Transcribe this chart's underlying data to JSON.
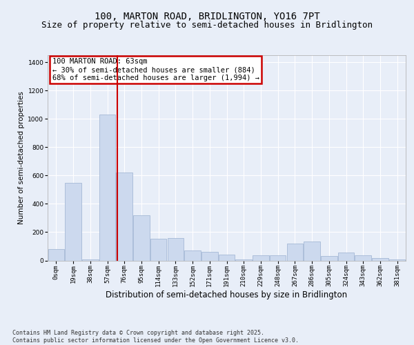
{
  "title": "100, MARTON ROAD, BRIDLINGTON, YO16 7PT",
  "subtitle": "Size of property relative to semi-detached houses in Bridlington",
  "xlabel": "Distribution of semi-detached houses by size in Bridlington",
  "ylabel": "Number of semi-detached properties",
  "categories": [
    "0sqm",
    "19sqm",
    "38sqm",
    "57sqm",
    "76sqm",
    "95sqm",
    "114sqm",
    "133sqm",
    "152sqm",
    "171sqm",
    "191sqm",
    "210sqm",
    "229sqm",
    "248sqm",
    "267sqm",
    "286sqm",
    "305sqm",
    "324sqm",
    "343sqm",
    "362sqm",
    "381sqm"
  ],
  "values": [
    80,
    550,
    5,
    1030,
    620,
    320,
    155,
    160,
    70,
    60,
    40,
    5,
    35,
    35,
    120,
    135,
    30,
    55,
    35,
    15,
    5
  ],
  "bar_color": "#ccd9ee",
  "bar_edge_color": "#9ab0d0",
  "vline_color": "#cc0000",
  "vline_pos": 3.57,
  "annotation_text": "100 MARTON ROAD: 63sqm\n← 30% of semi-detached houses are smaller (884)\n68% of semi-detached houses are larger (1,994) →",
  "annotation_box_facecolor": "#ffffff",
  "annotation_box_edgecolor": "#cc0000",
  "annotation_fontsize": 7.5,
  "footer": "Contains HM Land Registry data © Crown copyright and database right 2025.\nContains public sector information licensed under the Open Government Licence v3.0.",
  "background_color": "#e8eef8",
  "plot_background": "#e8eef8",
  "ylim": [
    0,
    1450
  ],
  "yticks": [
    0,
    200,
    400,
    600,
    800,
    1000,
    1200,
    1400
  ],
  "title_fontsize": 10,
  "subtitle_fontsize": 9,
  "xlabel_fontsize": 8.5,
  "ylabel_fontsize": 7.5,
  "tick_fontsize": 6.5,
  "footer_fontsize": 6
}
